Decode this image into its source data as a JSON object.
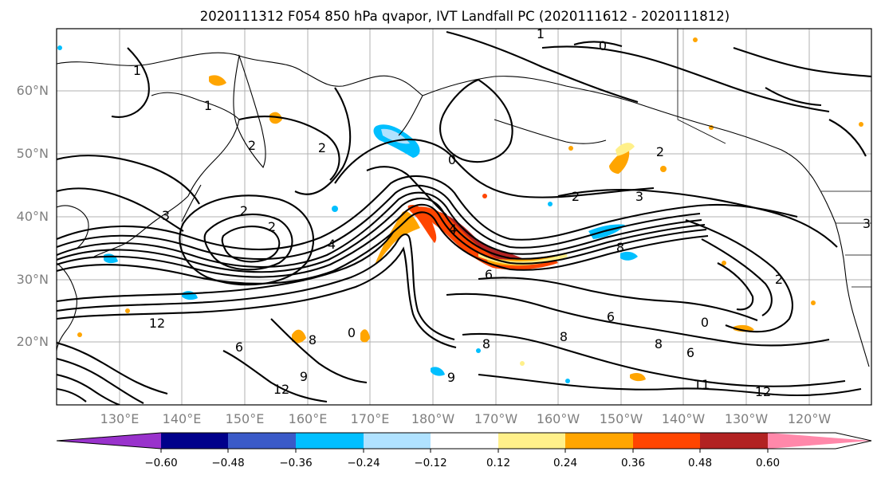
{
  "title": "2020111312 F054 850 hPa qvapor, IVT Landfall PC (2020111612 - 2020111812)",
  "map": {
    "lat_labels": [
      "60°N",
      "50°N",
      "40°N",
      "30°N",
      "20°N"
    ],
    "lon_labels": [
      "130°E",
      "140°E",
      "150°E",
      "160°E",
      "170°E",
      "180°W",
      "170°W",
      "160°W",
      "150°W",
      "140°W",
      "130°W",
      "120°W"
    ],
    "contour_labels": [
      "1",
      "0",
      "1",
      "2",
      "2",
      "2",
      "3",
      "4",
      "2",
      "1",
      "2",
      "0",
      "2",
      "3",
      "8",
      "6",
      "4",
      "12",
      "8",
      "6",
      "9",
      "0",
      "9",
      "12",
      "8",
      "8",
      "6",
      "6",
      "2",
      "0",
      "11",
      "12",
      "3",
      "8"
    ]
  },
  "colorbar": {
    "ticks": [
      "−0.60",
      "−0.48",
      "−0.36",
      "−0.24",
      "−0.12",
      "0.12",
      "0.24",
      "0.36",
      "0.48",
      "0.60"
    ],
    "colors": [
      "#9932cc",
      "#00008b",
      "#3a5ac8",
      "#00bfff",
      "#b0e2ff",
      "#ffffff",
      "#fff08a",
      "#ffa500",
      "#ff4500",
      "#b22222",
      "#ff88aa"
    ],
    "under_color": "#9932cc",
    "over_color": "#ff88aa"
  },
  "anomaly_colors": {
    "pos_light": "#fff08a",
    "pos_mid": "#ffa500",
    "pos_strong": "#ff4500",
    "pos_max": "#b22222",
    "neg_light": "#b0e2ff",
    "neg_mid": "#00bfff"
  }
}
